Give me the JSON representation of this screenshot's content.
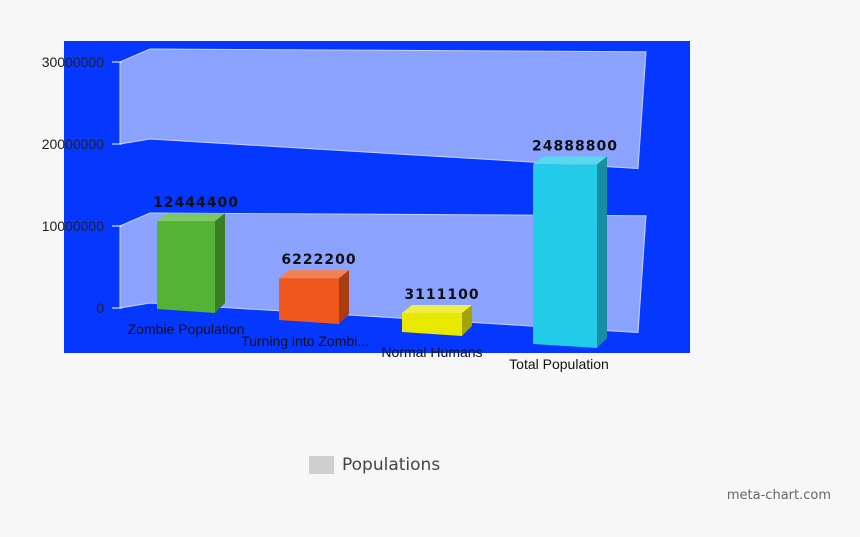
{
  "colors": {
    "plot_background": "#0637ff",
    "wall": "#8ca2ff",
    "page_background": "#f7f7f8",
    "legend_swatch": "#cfcfcf"
  },
  "chart_data": {
    "type": "bar",
    "style": "3d",
    "categories": [
      "Zombie Population",
      "Turning into Zombi...",
      "Normal Humans",
      "Total Population"
    ],
    "series": [
      {
        "name": "Populations",
        "values": [
          12444400,
          6222200,
          3111100,
          24888800
        ],
        "value_labels": [
          "12444400",
          "6222200",
          "3111100",
          "24888800"
        ],
        "colors": [
          "#53b334",
          "#f0571c",
          "#e8e800",
          "#22cbe8"
        ]
      }
    ],
    "y_ticks": [
      "0",
      "10000000",
      "20000000",
      "30000000"
    ],
    "ylim": [
      0,
      30000000
    ],
    "grid": true,
    "legend_position": "bottom"
  },
  "legend": {
    "label": "Populations"
  },
  "credit": "meta-chart.com"
}
